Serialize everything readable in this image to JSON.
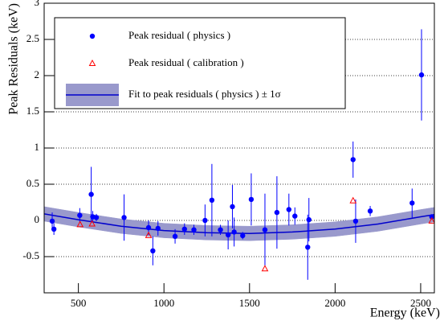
{
  "chart_data": {
    "type": "errorbar",
    "x_label": "Energy (keV)",
    "y_label": "Peak Residuals (keV)",
    "xlim": [
      300,
      2580
    ],
    "ylim": [
      -1,
      3
    ],
    "xticks": [
      500,
      1000,
      1500,
      2000,
      2500
    ],
    "yticks": [
      -0.5,
      0,
      0.5,
      1,
      1.5,
      2,
      2.5,
      3
    ],
    "grid": true,
    "legend": "top-left",
    "series": [
      {
        "name": "Peak residual ( physics )",
        "color": "#0000ff",
        "marker": "circle",
        "x": [
          347,
          357,
          508,
          575,
          584,
          605,
          767,
          910,
          935,
          965,
          1065,
          1120,
          1175,
          1240,
          1280,
          1330,
          1375,
          1400,
          1410,
          1460,
          1510,
          1590,
          1660,
          1730,
          1765,
          1840,
          1847,
          2105,
          2120,
          2205,
          2450,
          2505,
          2565
        ],
        "values": [
          -0.01,
          -0.12,
          0.07,
          0.36,
          0.05,
          0.04,
          0.04,
          -0.1,
          -0.42,
          -0.11,
          -0.22,
          -0.12,
          -0.13,
          0.0,
          0.28,
          -0.13,
          -0.2,
          0.19,
          -0.16,
          -0.21,
          0.29,
          -0.13,
          0.11,
          0.15,
          0.06,
          -0.37,
          0.01,
          0.84,
          -0.01,
          0.13,
          0.24,
          2.01,
          0.05
        ],
        "errors": [
          0.12,
          0.08,
          0.1,
          0.38,
          0.08,
          0.05,
          0.32,
          0.1,
          0.2,
          0.1,
          0.1,
          0.08,
          0.07,
          0.22,
          0.5,
          0.07,
          0.2,
          0.3,
          0.2,
          0.05,
          0.36,
          0.5,
          0.5,
          0.22,
          0.12,
          0.45,
          0.3,
          0.25,
          0.3,
          0.07,
          0.2,
          0.63,
          0.03
        ]
      },
      {
        "name": "Peak residual ( calibration )",
        "color": "#ff0000",
        "marker": "triangle",
        "x": [
          510,
          580,
          910,
          1590,
          2105,
          2565
        ],
        "values": [
          -0.06,
          -0.05,
          -0.21,
          -0.67,
          0.27,
          -0.01
        ]
      },
      {
        "name": "Fit to peak residuals ( physics ) ± 1σ",
        "color": "#0000cc",
        "band_color": "#9999cc",
        "marker": "band",
        "x": [
          300,
          500,
          750,
          1000,
          1250,
          1500,
          1750,
          2000,
          2250,
          2500,
          2580
        ],
        "values": [
          0.09,
          0.01,
          -0.08,
          -0.14,
          -0.17,
          -0.18,
          -0.16,
          -0.12,
          -0.05,
          0.05,
          0.08
        ],
        "errors": [
          0.1,
          0.1,
          0.1,
          0.1,
          0.1,
          0.1,
          0.1,
          0.1,
          0.1,
          0.1,
          0.1
        ]
      }
    ]
  }
}
